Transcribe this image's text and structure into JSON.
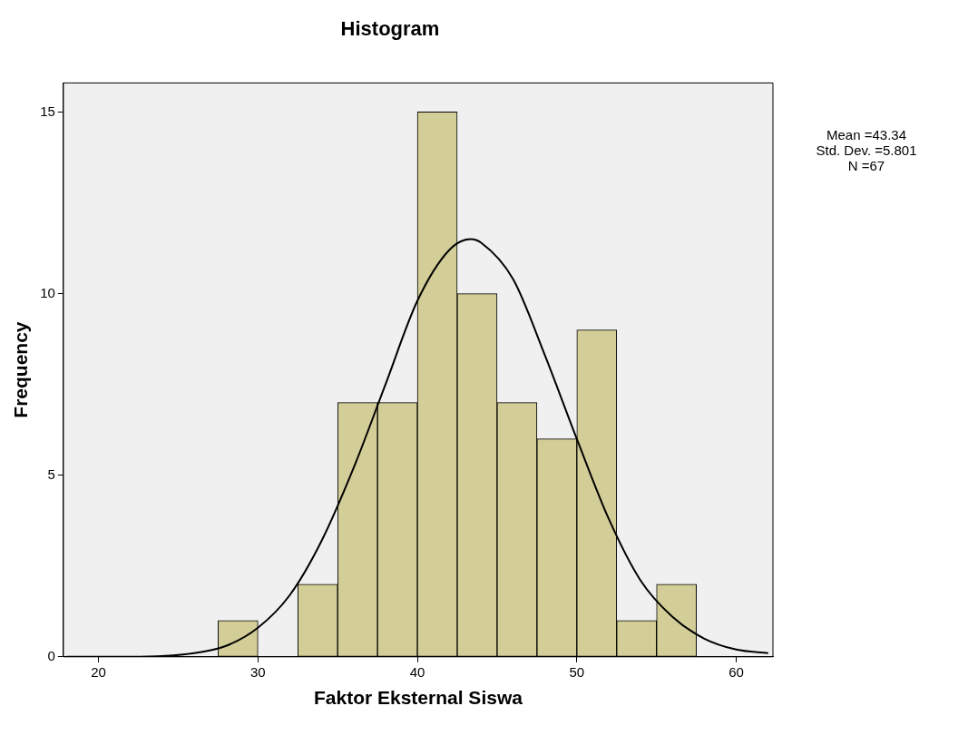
{
  "chart_data": {
    "type": "histogram",
    "title": "Histogram",
    "xlabel": "Faktor Eksternal Siswa",
    "ylabel": "Frequency",
    "xlim": [
      17.8,
      62.3
    ],
    "xticks": [
      20,
      30,
      40,
      50,
      60
    ],
    "ylim": [
      0,
      15.8
    ],
    "yticks": [
      0,
      5,
      10,
      15
    ],
    "grid": false,
    "legend": false,
    "marker": "none",
    "annotations": [
      "Mean =43.34",
      "Std. Dev. =5.801",
      "N =67"
    ],
    "series": [
      {
        "color": "#d3ce97",
        "bins": [
          27.5,
          30,
          32.5,
          35,
          37.5,
          40,
          42.5,
          45,
          47.5,
          50,
          52.5,
          55,
          57.5
        ],
        "values": [
          1,
          0,
          2,
          7,
          7,
          15,
          10,
          7,
          6,
          9,
          1,
          2
        ]
      },
      {
        "type": "line",
        "color": "#000000",
        "x": [
          18,
          22,
          26,
          28,
          30,
          32,
          34,
          36,
          38,
          40,
          42,
          43.34,
          44,
          46,
          48,
          50,
          52,
          54,
          56,
          58,
          60,
          62
        ],
        "values": [
          0,
          0,
          0.1,
          0.3,
          0.8,
          1.7,
          3.2,
          5.2,
          7.5,
          9.8,
          11.2,
          11.5,
          11.4,
          10.4,
          8.3,
          6,
          3.8,
          2.1,
          1.1,
          0.5,
          0.2,
          0.1
        ]
      }
    ]
  }
}
